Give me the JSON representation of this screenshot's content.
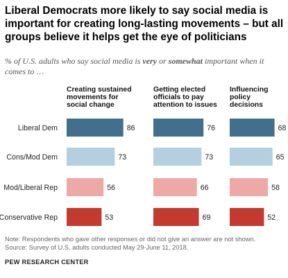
{
  "title": "Liberal Democrats more likely to say social media is important for creating long-lasting movements – but all groups believe it helps get the eye of politicians",
  "subtitle_parts": {
    "before": "% of U.S. adults who say social media is ",
    "very": "very",
    "or": " or ",
    "somewhat": "somewhat",
    "after": " important when it comes to …"
  },
  "chart_data": {
    "type": "bar",
    "orientation": "horizontal",
    "categories": [
      "Liberal Dem",
      "Cons/Mod Dem",
      "Mod/Liberal Rep",
      "Conservative Rep"
    ],
    "category_colors": [
      "#436f8e",
      "#b3cfe0",
      "#eea9a4",
      "#c23b2e"
    ],
    "panels": [
      {
        "title": [
          "Creating sustained",
          "movements for",
          "social change"
        ],
        "values": [
          86,
          73,
          56,
          53
        ]
      },
      {
        "title": [
          "Getting elected",
          "officials to pay",
          "attention to issues"
        ],
        "values": [
          76,
          73,
          66,
          69
        ]
      },
      {
        "title": [
          "Influencing",
          "policy",
          "decisions"
        ],
        "values": [
          68,
          65,
          58,
          52
        ]
      }
    ],
    "xlim": [
      0,
      100
    ],
    "grid": false,
    "legend": "none"
  },
  "notes": {
    "note": "Note: Respondents who gave other responses or did not give an answer are not shown.",
    "source": "Source: Survey of U.S. adults conducted May 29-June 11, 2018.",
    "org": "PEW RESEARCH CENTER"
  }
}
